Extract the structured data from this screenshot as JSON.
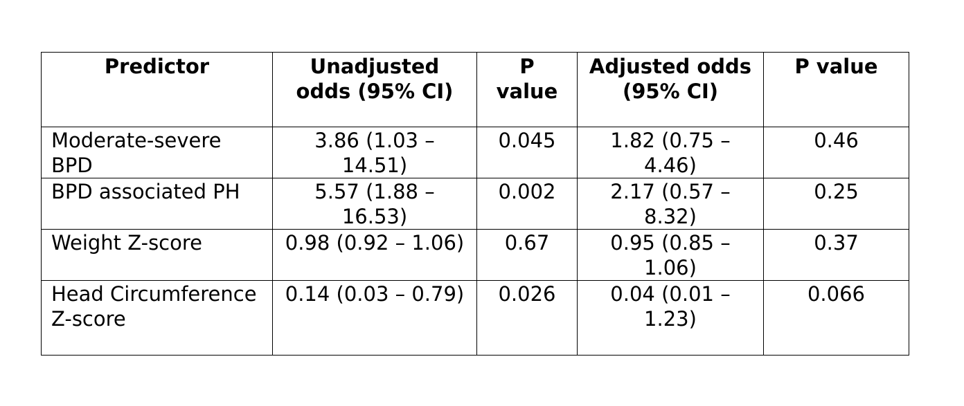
{
  "table": {
    "headers": {
      "predictor": "Predictor",
      "unadjusted": "Unadjusted odds (95% CI)",
      "p_value_1": "P value",
      "adjusted": "Adjusted odds (95% CI)",
      "p_value_2": "P value"
    },
    "rows": [
      {
        "predictor": "Moderate-severe BPD",
        "unadjusted": "3.86 (1.03 – 14.51)",
        "p_value_1": "0.045",
        "adjusted": "1.82 (0.75 – 4.46)",
        "p_value_2": "0.46"
      },
      {
        "predictor": "BPD associated PH",
        "unadjusted": "5.57 (1.88 – 16.53)",
        "p_value_1": "0.002",
        "adjusted": "2.17 (0.57 – 8.32)",
        "p_value_2": "0.25"
      },
      {
        "predictor": "Weight Z-score",
        "unadjusted": "0.98 (0.92 – 1.06)",
        "p_value_1": "0.67",
        "adjusted": "0.95 (0.85 – 1.06)",
        "p_value_2": "0.37"
      },
      {
        "predictor": "Head Circumference Z-score",
        "unadjusted": "0.14 (0.03 – 0.79)",
        "p_value_1": "0.026",
        "adjusted": "0.04 (0.01 – 1.23)",
        "p_value_2": "0.066"
      }
    ]
  }
}
